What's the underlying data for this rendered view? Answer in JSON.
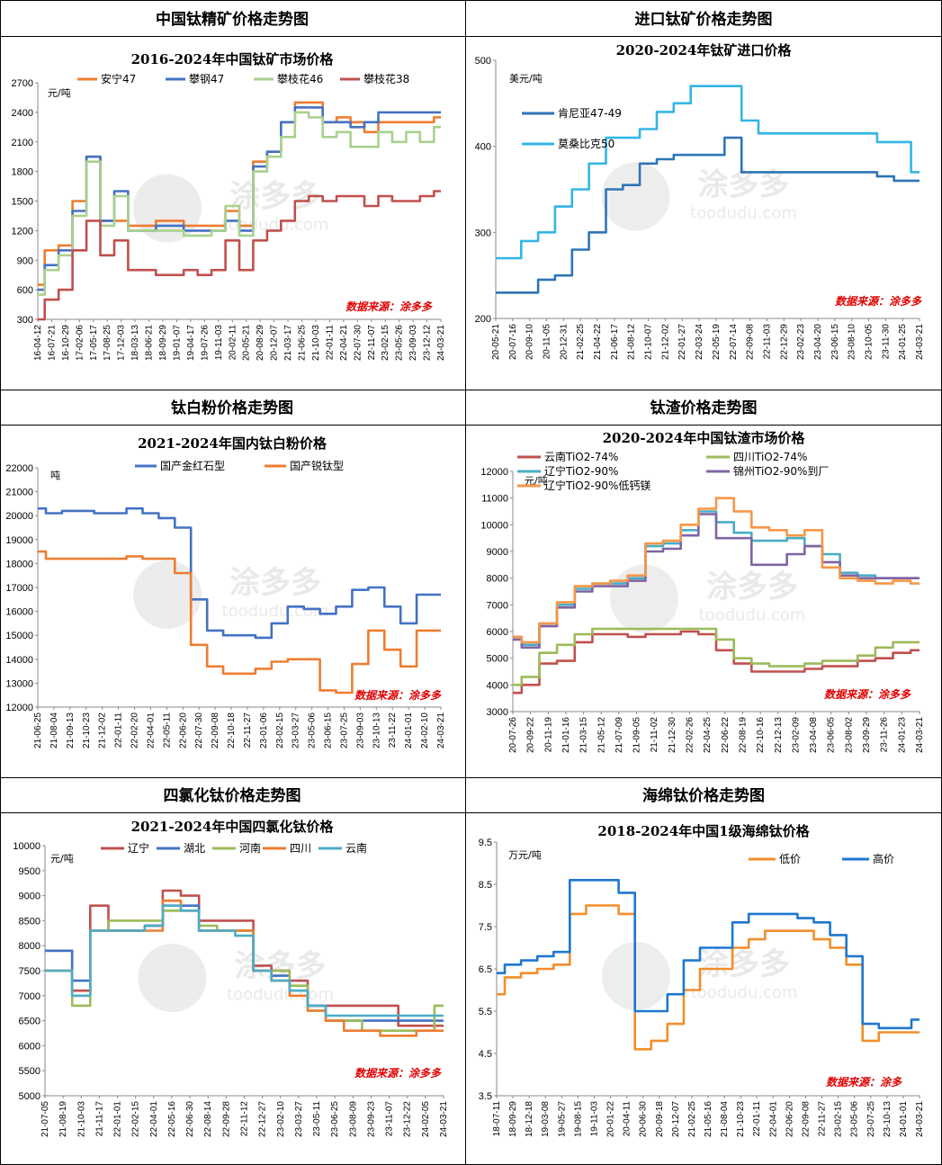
{
  "source_label": "数据来源：涂多多",
  "source_label_short": "数据来源：涂多",
  "watermark": {
    "brand": "涂多多",
    "url": "toodudu.com"
  },
  "panels": [
    {
      "header": "中国钛精矿价格走势图",
      "title": "2016-2024年中国钛矿市场价格",
      "unit": "元/吨",
      "source_label": "数据来源：涂多多"
    },
    {
      "header": "进口钛矿价格走势图",
      "title": "2020-2024年钛矿进口价格",
      "unit": "美元/吨",
      "source_label": ""
    },
    {
      "header": "钛白粉价格走势图",
      "title": "2021-2024年国内钛白粉价格",
      "unit": "吨",
      "source_label": "数据来源：涂多多"
    },
    {
      "header": "钛渣价格走势图",
      "title": "2020-2024年中国钛渣市场价格",
      "unit": "元/吨",
      "source_label": "数据来源：涂多多"
    },
    {
      "header": "四氯化钛价格走势图",
      "title": "2021-2024年中国四氯化钛价格",
      "unit": "元/吨",
      "source_label": "数据来源：涂多多"
    },
    {
      "header": "海绵钛价格走势图",
      "title": "2018-2024年中国1级海绵钛价格",
      "unit": "万元/吨",
      "source_label": "数据来源：涂多"
    }
  ],
  "chart_data": [
    {
      "type": "line",
      "title": "2016-2024年中国钛矿市场价格",
      "ylabel": "元/吨",
      "ylim": [
        300,
        2700
      ],
      "yticks": [
        300,
        600,
        900,
        1200,
        1500,
        1800,
        2100,
        2400,
        2700
      ],
      "legend": "top",
      "x_labels": [
        "16-04-12",
        "16-07-21",
        "16-10-29",
        "17-02-06",
        "17-05-17",
        "17-08-25",
        "17-12-03",
        "18-03-13",
        "18-06-21",
        "18-09-29",
        "19-01-07",
        "19-04-17",
        "19-07-26",
        "19-11-03",
        "20-02-11",
        "20-05-21",
        "20-08-29",
        "20-12-07",
        "21-03-17",
        "21-06-25",
        "21-10-03",
        "22-01-11",
        "22-04-21",
        "22-07-30",
        "22-11-07",
        "23-02-15",
        "23-05-26",
        "23-09-03",
        "23-12-12",
        "24-03-21"
      ],
      "series": [
        {
          "name": "安宁47",
          "color": "#ED7D31",
          "values": [
            650,
            1000,
            1050,
            1500,
            1950,
            1300,
            1300,
            1250,
            1250,
            1300,
            1300,
            1250,
            1250,
            1250,
            1400,
            1250,
            1900,
            2000,
            2300,
            2500,
            2500,
            2300,
            2350,
            2300,
            2200,
            2300,
            2300,
            2300,
            2300,
            2350
          ]
        },
        {
          "name": "攀钢47",
          "color": "#4472C4",
          "values": [
            600,
            850,
            1000,
            1400,
            1950,
            1300,
            1600,
            1200,
            1200,
            1250,
            1250,
            1200,
            1200,
            1200,
            1300,
            1200,
            1850,
            2000,
            2300,
            2450,
            2450,
            2300,
            2300,
            2250,
            2300,
            2400,
            2400,
            2400,
            2400,
            2400
          ]
        },
        {
          "name": "攀枝花46",
          "color": "#A9D18E",
          "values": [
            550,
            800,
            950,
            1350,
            1900,
            1250,
            1550,
            1200,
            1200,
            1200,
            1200,
            1150,
            1150,
            1200,
            1450,
            1150,
            1800,
            1950,
            2150,
            2400,
            2350,
            2150,
            2200,
            2050,
            2050,
            2200,
            2100,
            2200,
            2100,
            2250
          ]
        },
        {
          "name": "攀枝花38",
          "color": "#C0504D",
          "values": [
            300,
            500,
            600,
            1000,
            1300,
            950,
            1100,
            800,
            800,
            750,
            750,
            800,
            750,
            800,
            1100,
            800,
            1100,
            1200,
            1300,
            1500,
            1550,
            1500,
            1550,
            1550,
            1450,
            1550,
            1500,
            1500,
            1550,
            1600
          ]
        }
      ]
    },
    {
      "type": "line",
      "title": "2020-2024年钛矿进口价格",
      "ylabel": "美元/吨",
      "ylim": [
        200,
        500
      ],
      "yticks": [
        200,
        300,
        400,
        500
      ],
      "legend": "left",
      "x_labels": [
        "20-05-21",
        "20-07-16",
        "20-09-10",
        "20-11-05",
        "20-12-31",
        "21-02-25",
        "21-04-22",
        "21-06-17",
        "21-08-12",
        "21-10-07",
        "21-12-02",
        "22-01-27",
        "22-03-24",
        "22-05-19",
        "22-07-14",
        "22-09-08",
        "22-11-03",
        "22-12-29",
        "23-02-23",
        "23-04-20",
        "23-06-15",
        "23-08-10",
        "23-10-05",
        "23-11-30",
        "24-01-25",
        "24-03-21"
      ],
      "series": [
        {
          "name": "肯尼亚47-49",
          "color": "#2E75B6",
          "values": [
            230,
            230,
            230,
            245,
            250,
            280,
            300,
            350,
            355,
            380,
            385,
            390,
            390,
            390,
            410,
            370,
            370,
            370,
            370,
            370,
            370,
            370,
            370,
            365,
            360,
            360
          ]
        },
        {
          "name": "莫桑比克50",
          "color": "#33B5E5",
          "values": [
            270,
            270,
            290,
            300,
            330,
            350,
            380,
            410,
            410,
            420,
            440,
            450,
            470,
            470,
            470,
            430,
            415,
            415,
            415,
            415,
            415,
            415,
            415,
            405,
            405,
            370
          ]
        }
      ]
    },
    {
      "type": "line",
      "title": "2021-2024年国内钛白粉价格",
      "ylabel": "吨",
      "ylim": [
        12000,
        22000
      ],
      "yticks": [
        12000,
        13000,
        14000,
        15000,
        16000,
        17000,
        18000,
        19000,
        20000,
        21000,
        22000
      ],
      "legend": "top",
      "x_labels": [
        "21-06-25",
        "21-08-04",
        "21-09-13",
        "21-10-23",
        "21-12-02",
        "22-01-11",
        "22-02-20",
        "22-04-01",
        "22-05-11",
        "22-06-20",
        "22-07-30",
        "22-09-08",
        "22-10-18",
        "22-11-27",
        "23-01-06",
        "23-02-15",
        "23-03-27",
        "23-05-06",
        "23-06-15",
        "23-07-25",
        "23-09-03",
        "23-10-13",
        "23-11-22",
        "24-01-01",
        "24-02-10",
        "24-03-21"
      ],
      "series": [
        {
          "name": "国产金红石型",
          "color": "#4472C4",
          "values": [
            20300,
            20100,
            20200,
            20200,
            20100,
            20100,
            20300,
            20100,
            19900,
            19500,
            16500,
            15200,
            15000,
            15000,
            14900,
            15500,
            16200,
            16100,
            15900,
            16200,
            16900,
            17000,
            16200,
            15500,
            16700,
            16700
          ]
        },
        {
          "name": "国产锐钛型",
          "color": "#ED7D31",
          "values": [
            18500,
            18200,
            18200,
            18200,
            18200,
            18200,
            18300,
            18200,
            18200,
            17600,
            14600,
            13700,
            13400,
            13400,
            13600,
            13900,
            14000,
            14000,
            12700,
            12600,
            13800,
            15200,
            14400,
            13700,
            15200,
            15200
          ]
        }
      ]
    },
    {
      "type": "line",
      "title": "2020-2024年中国钛渣市场价格",
      "ylabel": "元/吨",
      "ylim": [
        3000,
        12000
      ],
      "yticks": [
        3000,
        4000,
        5000,
        6000,
        7000,
        8000,
        9000,
        10000,
        11000,
        12000
      ],
      "legend": "top",
      "x_labels": [
        "20-07-26",
        "20-09-22",
        "20-11-19",
        "21-01-16",
        "21-03-15",
        "21-05-12",
        "21-07-09",
        "21-09-05",
        "21-11-02",
        "21-12-30",
        "22-02-26",
        "22-04-25",
        "22-06-22",
        "22-08-19",
        "22-10-16",
        "22-12-13",
        "23-02-09",
        "23-04-08",
        "23-06-05",
        "23-08-02",
        "23-09-29",
        "23-11-26",
        "24-01-23",
        "24-03-21"
      ],
      "series": [
        {
          "name": "云南TiO2-74%",
          "color": "#C0504D",
          "values": [
            3700,
            4000,
            4800,
            4900,
            5600,
            5900,
            5900,
            5800,
            5900,
            5900,
            6000,
            5900,
            5300,
            4800,
            4500,
            4500,
            4500,
            4600,
            4700,
            4700,
            4900,
            5000,
            5200,
            5300
          ]
        },
        {
          "name": "四川TiO2-74%",
          "color": "#9BBB59",
          "values": [
            4000,
            4300,
            5200,
            5500,
            5900,
            6100,
            6100,
            6100,
            6100,
            6100,
            6100,
            6100,
            5700,
            5000,
            4800,
            4700,
            4700,
            4800,
            4900,
            4900,
            5100,
            5400,
            5600,
            5600
          ]
        },
        {
          "name": "辽宁TiO2-90%",
          "color": "#4BACC6",
          "values": [
            5800,
            5500,
            6300,
            7000,
            7600,
            7800,
            7800,
            8000,
            9200,
            9300,
            9800,
            10500,
            10100,
            9700,
            9400,
            9400,
            9500,
            9200,
            8900,
            8200,
            8100,
            8000,
            8000,
            8000
          ]
        },
        {
          "name": "锦州TiO2-90%到厂",
          "color": "#8064A2",
          "values": [
            5700,
            5400,
            6200,
            6900,
            7500,
            7700,
            7700,
            7900,
            9000,
            9100,
            9600,
            10400,
            9500,
            9500,
            8500,
            8500,
            8900,
            9200,
            8600,
            8100,
            8000,
            8000,
            8000,
            8000
          ]
        },
        {
          "name": "辽宁TiO2-90%低钙镁",
          "color": "#F79646",
          "values": [
            5800,
            5600,
            6300,
            7100,
            7700,
            7800,
            7900,
            8100,
            9300,
            9400,
            10000,
            10600,
            11000,
            10500,
            9900,
            9800,
            9600,
            9800,
            8400,
            8000,
            7900,
            7800,
            7900,
            7800
          ]
        }
      ]
    },
    {
      "type": "line",
      "title": "2021-2024年中国四氯化钛价格",
      "ylabel": "元/吨",
      "ylim": [
        5000,
        10000
      ],
      "yticks": [
        5000,
        5500,
        6000,
        6500,
        7000,
        7500,
        8000,
        8500,
        9000,
        9500,
        10000
      ],
      "legend": "top",
      "x_labels": [
        "21-07-05",
        "21-08-19",
        "21-10-03",
        "21-11-17",
        "22-01-01",
        "22-02-15",
        "22-04-01",
        "22-05-16",
        "22-06-30",
        "22-08-14",
        "22-09-28",
        "22-11-12",
        "22-12-27",
        "23-02-10",
        "23-03-27",
        "23-05-11",
        "23-06-25",
        "23-08-09",
        "23-09-23",
        "23-11-07",
        "23-12-22",
        "24-02-05",
        "24-03-21"
      ],
      "series": [
        {
          "name": "辽宁",
          "color": "#C0504D",
          "values": [
            7900,
            7900,
            7100,
            8800,
            8300,
            8300,
            8400,
            9100,
            9000,
            8500,
            8500,
            8500,
            7600,
            7500,
            7300,
            6800,
            6800,
            6800,
            6800,
            6800,
            6400,
            6400,
            6400
          ]
        },
        {
          "name": "湖北",
          "color": "#4472C4",
          "values": [
            7900,
            7900,
            7300,
            8300,
            8300,
            8300,
            8400,
            8800,
            8800,
            8300,
            8300,
            8300,
            7500,
            7400,
            7100,
            6800,
            6500,
            6500,
            6500,
            6500,
            6500,
            6500,
            6500
          ]
        },
        {
          "name": "河南",
          "color": "#9BBB59",
          "values": [
            7500,
            7500,
            6800,
            8300,
            8500,
            8500,
            8500,
            8700,
            8700,
            8400,
            8300,
            8300,
            7500,
            7500,
            7200,
            6700,
            6500,
            6500,
            6300,
            6300,
            6300,
            6300,
            6800
          ]
        },
        {
          "name": "四川",
          "color": "#ED7D31",
          "values": [
            7500,
            7500,
            7000,
            8300,
            8300,
            8300,
            8300,
            8900,
            8700,
            8300,
            8300,
            8300,
            7500,
            7300,
            7000,
            6700,
            6500,
            6300,
            6300,
            6200,
            6200,
            6300,
            6300
          ]
        },
        {
          "name": "云南",
          "color": "#4BACC6",
          "values": [
            7500,
            7500,
            7000,
            8300,
            8300,
            8300,
            8400,
            8800,
            8700,
            8300,
            8300,
            8200,
            7500,
            7300,
            7100,
            6800,
            6600,
            6600,
            6600,
            6600,
            6600,
            6600,
            6600
          ]
        }
      ]
    },
    {
      "type": "line",
      "title": "2018-2024年中国1级海绵钛价格",
      "ylabel": "万元/吨",
      "ylim": [
        3.5,
        9.5
      ],
      "yticks": [
        3.5,
        4.5,
        5.5,
        6.5,
        7.5,
        8.5,
        9.5
      ],
      "legend": "top-right",
      "x_labels": [
        "18-07-11",
        "18-09-29",
        "18-12-18",
        "19-03-08",
        "19-05-27",
        "19-08-15",
        "19-11-03",
        "20-01-22",
        "20-04-11",
        "20-06-30",
        "20-09-18",
        "20-12-07",
        "21-02-25",
        "21-05-16",
        "21-08-04",
        "21-10-23",
        "22-01-11",
        "22-04-01",
        "22-06-20",
        "22-09-08",
        "22-11-27",
        "23-02-15",
        "23-05-06",
        "23-07-25",
        "23-10-13",
        "24-01-01",
        "24-03-21"
      ],
      "series": [
        {
          "name": "低价",
          "color": "#F28E2B",
          "values": [
            5.9,
            6.3,
            6.4,
            6.5,
            6.6,
            7.8,
            8.0,
            8.0,
            7.8,
            4.6,
            4.8,
            5.2,
            6.0,
            6.5,
            6.5,
            7.0,
            7.2,
            7.4,
            7.4,
            7.4,
            7.2,
            7.0,
            6.6,
            4.8,
            5.0,
            5.0,
            5.0
          ]
        },
        {
          "name": "高价",
          "color": "#1F77D0",
          "values": [
            6.4,
            6.6,
            6.7,
            6.8,
            6.9,
            8.6,
            8.6,
            8.6,
            8.3,
            5.5,
            5.5,
            5.9,
            6.7,
            7.0,
            7.0,
            7.6,
            7.8,
            7.8,
            7.8,
            7.7,
            7.6,
            7.3,
            6.8,
            5.2,
            5.1,
            5.1,
            5.3
          ]
        }
      ]
    }
  ]
}
